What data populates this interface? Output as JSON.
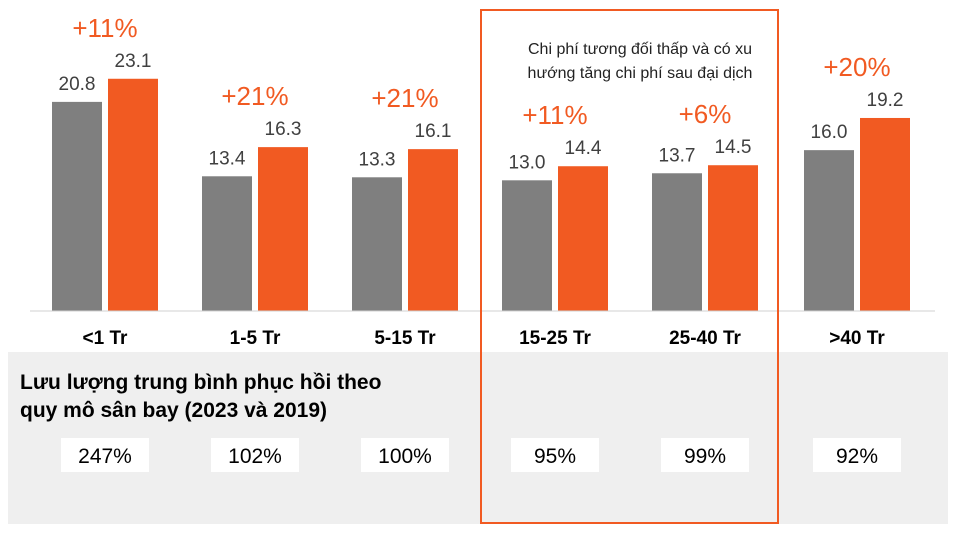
{
  "chart_data": {
    "type": "bar",
    "categories": [
      "<1 Tr",
      "1-5 Tr",
      "5-15 Tr",
      "15-25 Tr",
      "25-40 Tr",
      ">40 Tr"
    ],
    "series": [
      {
        "name": "2019",
        "values": [
          20.8,
          13.4,
          13.3,
          13.0,
          13.7,
          16.0
        ],
        "color": "#7f7f7f"
      },
      {
        "name": "2023",
        "values": [
          23.1,
          16.3,
          16.1,
          14.4,
          14.5,
          19.2
        ],
        "color": "#f15a22"
      }
    ],
    "value_labels": {
      "2019": [
        "20.8",
        "13.4",
        "13.3",
        "13.0",
        "13.7",
        "16.0"
      ],
      "2023": [
        "23.1",
        "16.3",
        "16.1",
        "14.4",
        "14.5",
        "19.2"
      ]
    },
    "growth_labels": [
      "+11%",
      "+21%",
      "+21%",
      "+11%",
      "+6%",
      "+20%"
    ],
    "ylim": [
      0,
      34
    ],
    "highlight": {
      "categories": [
        "15-25 Tr",
        "25-40 Tr"
      ],
      "note_lines": [
        "Chi phí tương đối thấp và có xu",
        "hướng tăng chi phí sau đại dịch"
      ],
      "color": "#f15a22"
    }
  },
  "recovery": {
    "title_lines": [
      "Lưu lượng trung bình phục hồi theo",
      "quy mô sân bay (2023 và 2019)"
    ],
    "values": [
      "247%",
      "102%",
      "100%",
      "95%",
      "99%",
      "92%"
    ]
  },
  "colors": {
    "panel_background": "#efefef",
    "baseline": "#d0d0d0"
  }
}
